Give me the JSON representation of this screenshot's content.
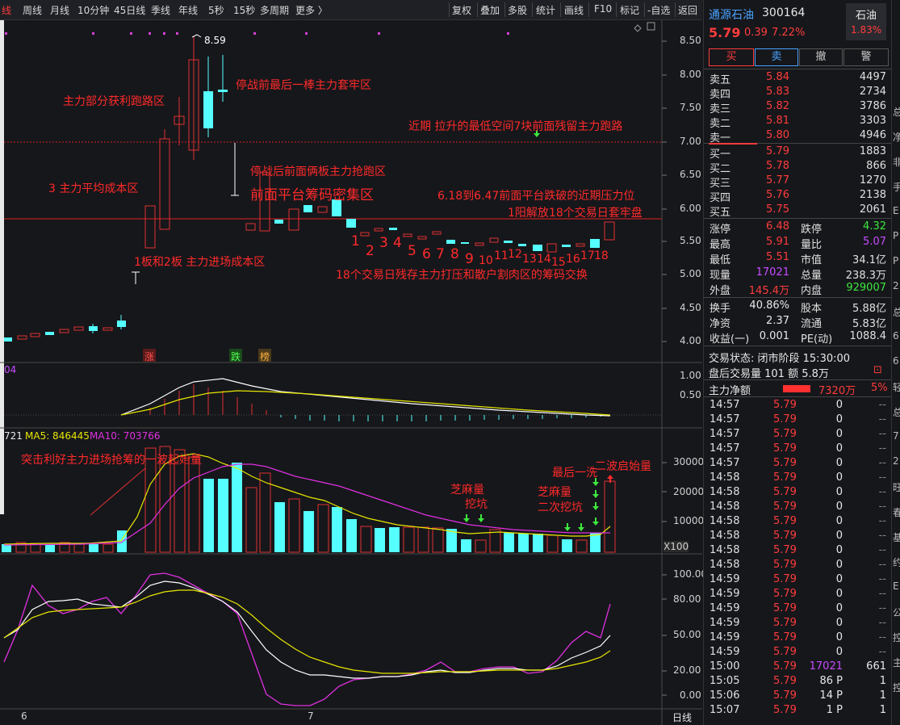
{
  "toolbar": {
    "items": [
      "线",
      "周线",
      "月线",
      "10分钟",
      "45日线",
      "季线",
      "年线",
      "5秒",
      "15秒",
      "多周期",
      "更多 〉"
    ],
    "right": [
      "复权",
      "叠加",
      "多股",
      "统计",
      "画线",
      "F10",
      "标记",
      "-自选",
      "返回"
    ]
  },
  "price_axis": [
    "8.50",
    "8.00",
    "7.50",
    "7.00",
    "6.50",
    "6.00",
    "5.50",
    "5.00",
    "4.50",
    "4.00"
  ],
  "high_marker": "8.59",
  "tags": {
    "up": "涨",
    "down": "跌",
    "rank": "榜"
  },
  "macd_axis": [
    "1.00",
    "0.50"
  ],
  "macd_label": "04",
  "vol_header": {
    "vol": "721",
    "ma5": "MA5: 846445",
    "ma10": "MA10: 703766"
  },
  "vol_axis": [
    "30000",
    "20000",
    "10000",
    "X100"
  ],
  "kdj_axis": [
    "100.00",
    "80.00",
    "50.00",
    "20.00",
    "0.00"
  ],
  "date_labels": [
    "6",
    "7"
  ],
  "period": "日线",
  "annotations": {
    "a1": "主力部分获利跑路区",
    "a2": "停战前最后一棒主力套牢区",
    "a3": "近期 拉升的最低空间7块前面残留主力跑路",
    "a4": "停战后前面俩板主力抢跑区",
    "a5": "前面平台筹码密集区",
    "a6": "3  主力平均成本区",
    "a7": "6.18到6.47前面平台跌破的近期压力位",
    "a8": "1阳解放18个交易日套牢盘",
    "a9": "1板和2板  主力进场成本区",
    "a10": "18个交易日残存主力打压和散户割肉区的筹码交换",
    "a11": "突击利好主力进场抢筹的一波起始量",
    "a12": "芝麻量",
    "a13": "挖坑",
    "a14": "芝麻量",
    "a15": "二次挖坑",
    "a16": "最后一洗",
    "a17": "二波启始量"
  },
  "day_numbers": [
    "1",
    "2",
    "3",
    "4",
    "5",
    "6",
    "7",
    "8",
    "9",
    "10",
    "11",
    "12",
    "13",
    "14",
    "15",
    "16",
    "17",
    "18"
  ],
  "stock": {
    "name": "通源石油",
    "code": "300164",
    "sector": "石油",
    "sector_pct": "1.83%",
    "price": "5.79",
    "change": "0.39",
    "pct": "7.22%"
  },
  "trade_buttons": [
    "买",
    "卖",
    "撤",
    "警"
  ],
  "order_book": {
    "sell": [
      {
        "label": "卖五",
        "price": "5.84",
        "vol": "4497"
      },
      {
        "label": "卖四",
        "price": "5.83",
        "vol": "2734"
      },
      {
        "label": "卖三",
        "price": "5.82",
        "vol": "3786"
      },
      {
        "label": "卖二",
        "price": "5.81",
        "vol": "3303"
      },
      {
        "label": "卖一",
        "price": "5.80",
        "vol": "4946"
      }
    ],
    "buy": [
      {
        "label": "买一",
        "price": "5.79",
        "vol": "1883"
      },
      {
        "label": "买二",
        "price": "5.78",
        "vol": "866"
      },
      {
        "label": "买三",
        "price": "5.77",
        "vol": "1270"
      },
      {
        "label": "买四",
        "price": "5.76",
        "vol": "2138"
      },
      {
        "label": "买五",
        "price": "5.75",
        "vol": "2061"
      }
    ]
  },
  "stats": [
    [
      "涨停",
      "6.48",
      "跌停",
      "4.32"
    ],
    [
      "最高",
      "5.91",
      "量比",
      "5.07"
    ],
    [
      "最低",
      "5.51",
      "市值",
      "34.1亿"
    ],
    [
      "现量",
      "17021",
      "总量",
      "238.3万"
    ],
    [
      "外盘",
      "145.4万",
      "内盘",
      "929007"
    ]
  ],
  "stats2": [
    [
      "换手",
      "40.86%",
      "股本",
      "5.88亿"
    ],
    [
      "净资",
      "2.37",
      "流通",
      "5.83亿"
    ],
    [
      "收益(一)",
      "0.001",
      "PE(动)",
      "1088.4"
    ]
  ],
  "status": {
    "trade_state": "交易状态: 闭市阶段 15:30:00",
    "after": "盘后交易量 101 额 5.8万",
    "flow_label": "主力净额",
    "flow_val": "7320万",
    "flow_pct": "5%"
  },
  "ticks": [
    [
      "14:57",
      "5.79",
      "0",
      "--"
    ],
    [
      "14:57",
      "5.79",
      "0",
      "--"
    ],
    [
      "14:57",
      "5.79",
      "0",
      "--"
    ],
    [
      "14:57",
      "5.79",
      "0",
      "--"
    ],
    [
      "14:57",
      "5.79",
      "0",
      "--"
    ],
    [
      "14:58",
      "5.79",
      "0",
      "--"
    ],
    [
      "14:58",
      "5.79",
      "0",
      "--"
    ],
    [
      "14:58",
      "5.79",
      "0",
      "--"
    ],
    [
      "14:58",
      "5.79",
      "0",
      "--"
    ],
    [
      "14:58",
      "5.79",
      "0",
      "--"
    ],
    [
      "14:58",
      "5.79",
      "0",
      "--"
    ],
    [
      "14:58",
      "5.79",
      "0",
      "--"
    ],
    [
      "14:59",
      "5.79",
      "0",
      "--"
    ],
    [
      "14:59",
      "5.79",
      "0",
      "--"
    ],
    [
      "14:59",
      "5.79",
      "0",
      "--"
    ],
    [
      "14:59",
      "5.79",
      "0",
      "--"
    ],
    [
      "14:59",
      "5.79",
      "0",
      "--"
    ],
    [
      "14:59",
      "5.79",
      "0",
      "--"
    ],
    [
      "15:00",
      "5.79",
      "17021",
      "661"
    ],
    [
      "15:05",
      "5.79",
      "86 P",
      "1"
    ],
    [
      "15:06",
      "5.79",
      "14 P",
      "1"
    ],
    [
      "15:07",
      "5.79",
      "1 P",
      "1"
    ]
  ],
  "edge_chars": [
    "总",
    "净",
    "非",
    "手",
    "E",
    "P",
    "P",
    "2",
    "总",
    "6",
    "6",
    "轻",
    "总",
    "7",
    "2",
    "旺",
    "春",
    "基",
    "约",
    "E",
    "公",
    "控",
    "主",
    "控"
  ]
}
